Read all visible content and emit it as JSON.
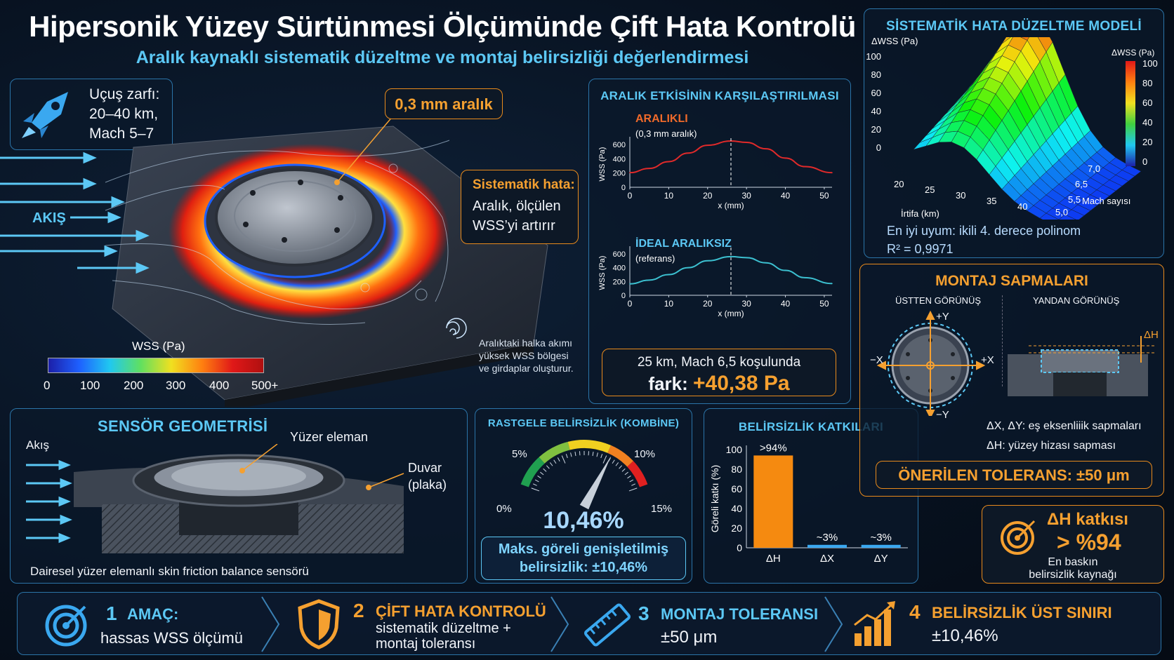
{
  "header": {
    "title": "Hipersonik Yüzey Sürtünmesi Ölçümünde Çift Hata Kontrolü",
    "subtitle": "Aralık kaynaklı sistematik düzeltme ve montaj belirsizliği değerlendirmesi"
  },
  "flight": {
    "l1": "Uçuş zarfı:",
    "l2": "20–40 km,",
    "l3": "Mach 5–7"
  },
  "hero": {
    "gap_label": "0,3 mm aralık",
    "flow_label": "AKIŞ",
    "sys_title": "Sistematik hata:",
    "sys_l1": "Aralık, ölçülen",
    "sys_l2": "WSS’yi artırır",
    "vortex_l1": "Aralıktaki halka akımı",
    "vortex_l2": "yüksek WSS bölgesi",
    "vortex_l3": "ve girdaplar oluşturur.",
    "colorbar_title": "WSS (Pa)",
    "colorbar_ticks": [
      "0",
      "100",
      "200",
      "300",
      "400",
      "500+"
    ]
  },
  "compare": {
    "title": "ARALIK ETKİSİNİN KARŞILAŞTIRILMASI",
    "top_title": "ARALIKLI",
    "top_sub": "(0,3 mm aralık)",
    "bottom_title": "İDEAL ARALIKSIZ",
    "bottom_sub": "(referans)",
    "ylabel": "WSS (Pa)",
    "xlabel": "x (mm)",
    "xticks": [
      "0",
      "10",
      "20",
      "30",
      "40",
      "50"
    ],
    "yticks": [
      "0",
      "200",
      "400",
      "600"
    ],
    "result_l1": "25 km, Mach 6,5 koşulunda",
    "result_prefix": "fark:",
    "result_value": "+40,38 Pa",
    "colors": {
      "gap": "#e02a2a",
      "ideal": "#3cc0d0"
    }
  },
  "chart_data": [
    {
      "type": "line",
      "title": "ARALIKLI",
      "xlabel": "x (mm)",
      "ylabel": "WSS (Pa)",
      "xlim": [
        0,
        52
      ],
      "ylim": [
        0,
        650
      ],
      "x": [
        0,
        5,
        10,
        15,
        20,
        26,
        30,
        35,
        40,
        45,
        52
      ],
      "y": [
        205,
        265,
        360,
        480,
        590,
        650,
        630,
        540,
        410,
        290,
        205
      ]
    },
    {
      "type": "line",
      "title": "İDEAL ARALIKSIZ",
      "xlabel": "x (mm)",
      "ylabel": "WSS (Pa)",
      "xlim": [
        0,
        52
      ],
      "ylim": [
        0,
        650
      ],
      "x": [
        0,
        5,
        10,
        15,
        20,
        26,
        30,
        35,
        40,
        45,
        52
      ],
      "y": [
        165,
        220,
        300,
        400,
        500,
        560,
        545,
        470,
        360,
        255,
        170
      ]
    },
    {
      "type": "bar",
      "title": "BELİRSİZLİK KATKILARI",
      "ylabel": "Göreli katkı (%)",
      "categories": [
        "ΔH",
        "ΔX",
        "ΔY"
      ],
      "values": [
        94,
        3,
        3
      ],
      "labels": [
        ">94%",
        "~3%",
        "~3%"
      ],
      "ylim": [
        0,
        100
      ]
    }
  ],
  "model": {
    "title": "SİSTEMATİK HATA DÜZELTME MODELİ",
    "zlabel": "ΔWSS (Pa)",
    "cbar_label": "ΔWSS (Pa)",
    "zticks": [
      "100",
      "80",
      "60",
      "40",
      "20",
      "0"
    ],
    "cbar_ticks": [
      "100",
      "80",
      "60",
      "40",
      "20",
      "0"
    ],
    "alt_ticks": [
      "20",
      "25",
      "30",
      "35",
      "40"
    ],
    "alt_label": "İrtifa (km)",
    "mach_ticks": [
      "5,0",
      "5,5",
      "6,5",
      "7,0"
    ],
    "mach_label": "Mach sayısı",
    "fit": "En iyi uyum: ikili 4. derece polinom",
    "r2": "R² = 0,9971"
  },
  "geometry": {
    "title": "SENSÖR GEOMETRİSİ",
    "flow": "Akış",
    "floating": "Yüzer eleman",
    "wall_l1": "Duvar",
    "wall_l2": "(plaka)",
    "caption": "Dairesel yüzer elemanlı skin friction balance sensörü"
  },
  "gauge": {
    "title": "RASTGELE BELİRSİZLİK (KOMBİNE)",
    "value": "10,46%",
    "t0": "0%",
    "t5": "5%",
    "t10": "10%",
    "t15": "15%",
    "box_l1": "Maks. göreli genişletilmiş",
    "box_l2": "belirsizlik: ±10,46%",
    "level": 10.46
  },
  "bars_panel": {
    "title": "BELİRSİZLİK KATKILARI",
    "ylabel": "Göreli katkı (%)",
    "yticks": [
      "100",
      "80",
      "60",
      "40",
      "20",
      "0"
    ]
  },
  "mount": {
    "title": "MONTAJ SAPMALARI",
    "top_view": "ÜSTTEN GÖRÜNÜŞ",
    "side_view": "YANDAN GÖRÜNÜŞ",
    "py": "+Y",
    "ny": "−Y",
    "px": "+X",
    "nx": "−X",
    "dh": "ΔH",
    "note1": "ΔX,  ΔY:  eş eksenliiik sapmaları",
    "note2": "ΔH:  yüzey hizası sapması",
    "tolerance": "ÖNERİLEN TOLERANS: ±50 μm"
  },
  "dh_box": {
    "l1": "ΔH katkısı",
    "l2": "> %94",
    "l3": "En baskın",
    "l4": "belirsizlik kaynağı"
  },
  "steps": [
    {
      "num": "1",
      "title": "AMAÇ:",
      "l1": "hassas WSS ölçümü",
      "l2": ""
    },
    {
      "num": "2",
      "title": "ÇİFT HATA KONTROLÜ",
      "l1": "sistematik düzeltme +",
      "l2": "montaj toleransı"
    },
    {
      "num": "3",
      "title": "MONTAJ TOLERANSI",
      "l1": "±50 μm",
      "l2": ""
    },
    {
      "num": "4",
      "title": "BELİRSİZLİK ÜST SINIRI",
      "l1": "±10,46%",
      "l2": ""
    }
  ]
}
